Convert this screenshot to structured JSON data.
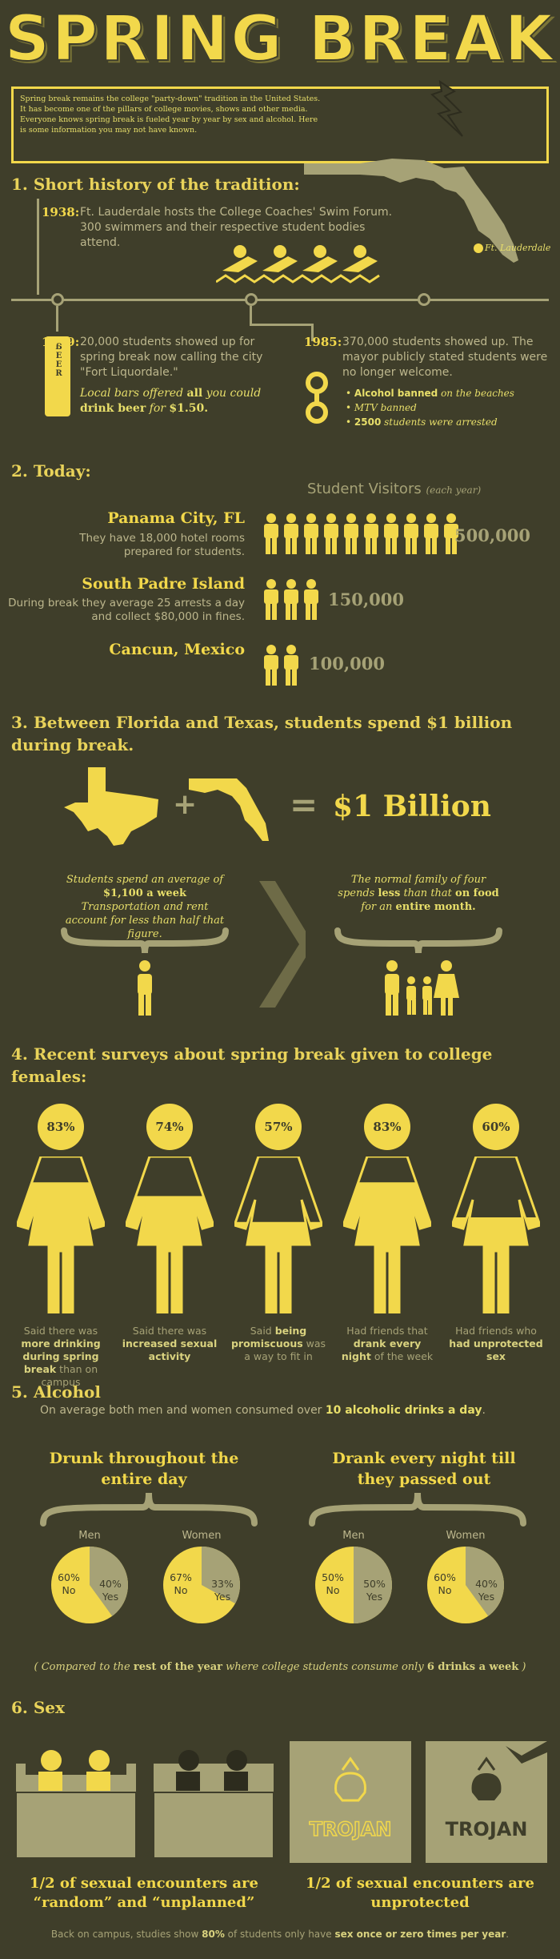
{
  "title": "SPRING BREAK",
  "intro": "Spring break remains the college \"party-down\" tradition in the United States. It has become one of the pillars of college movies, shows and other media. Everyone knows spring break is fueled year by year by sex and alcohol. Here is some information you may not have known.",
  "history": {
    "heading": "1. Short history of the tradition:",
    "map_label": "Ft. Lauderdale",
    "y1938": {
      "year": "1938:",
      "text": "Ft. Lauderdale hosts the College Coaches' Swim Forum. 300 swimmers and their respective student bodies attend."
    },
    "y1959": {
      "year": "1959:",
      "text": "20,000 students showed up for spring break now calling the city \"Fort Liquordale.\"",
      "note_a": "Local bars offered ",
      "note_b": "all",
      "note_c": " you could ",
      "note_d": "drink beer",
      "note_e": " for ",
      "note_f": "$1.50.",
      "beer_label": "BEER"
    },
    "y1985": {
      "year": "1985:",
      "text": "370,000 students showed up. The mayor publicly stated students were no longer welcome.",
      "bullets": [
        {
          "bold": "Alcohol banned",
          "rest": " on the beaches"
        },
        {
          "bold": "",
          "rest": "MTV banned"
        },
        {
          "bold": "2500",
          "rest": " students were arrested"
        }
      ]
    }
  },
  "today": {
    "heading": "2. Today:",
    "visitors_label": "Student Visitors",
    "visitors_sub": "(each year)",
    "places": [
      {
        "name": "Panama City, FL",
        "desc": "They have 18,000 hotel rooms prepared for students.",
        "count": "500,000",
        "icons": 10
      },
      {
        "name": "South Padre Island",
        "desc": "During break they average 25 arrests a day and collect $80,000 in fines.",
        "count": "150,000",
        "icons": 3
      },
      {
        "name": "Cancun, Mexico",
        "desc": "",
        "count": "100,000",
        "icons": 2
      }
    ]
  },
  "billion": {
    "heading": "3. Between Florida and Texas, students spend $1 billion during break.",
    "plus": "+",
    "equals": "=",
    "amount": "$1 Billion",
    "left_a": "Students spend an average of",
    "left_b": "$1,100 a week",
    "left_c": "Transportation and rent account for less than half that figure.",
    "right_a": "The normal family of four spends ",
    "right_b": "less",
    "right_c": " than that ",
    "right_d": "on food",
    "right_e": " for an ",
    "right_f": "entire month."
  },
  "surveys": {
    "heading": "4. Recent surveys about spring break given to college females:",
    "items": [
      {
        "pct": "83%",
        "fill": 0.83,
        "cap_a": "Said there was ",
        "cap_b": "more drinking during spring break",
        "cap_c": " than on campus"
      },
      {
        "pct": "74%",
        "fill": 0.74,
        "cap_a": "Said there was ",
        "cap_b": "increased sexual activity",
        "cap_c": ""
      },
      {
        "pct": "57%",
        "fill": 0.57,
        "cap_a": "Said ",
        "cap_b": "being promiscuous",
        "cap_c": " was a way to fit in"
      },
      {
        "pct": "83%",
        "fill": 0.83,
        "cap_a": "Had friends that ",
        "cap_b": "drank every night",
        "cap_c": " of the week"
      },
      {
        "pct": "60%",
        "fill": 0.6,
        "cap_a": "Had friends who ",
        "cap_b": "had unprotected sex",
        "cap_c": ""
      }
    ]
  },
  "alcohol": {
    "heading": "5. Alcohol",
    "sub_a": "On average both men and women consumed over ",
    "sub_b": "10 alcoholic drinks a day",
    "sub_c": ".",
    "groups": [
      {
        "title": "Drunk throughout the entire day",
        "pies": [
          {
            "who": "Men",
            "no": "60%",
            "yes": "40%",
            "yes_frac": 0.4
          },
          {
            "who": "Women",
            "no": "67%",
            "yes": "33%",
            "yes_frac": 0.33
          }
        ]
      },
      {
        "title": "Drank every night till they passed out",
        "pies": [
          {
            "who": "Men",
            "no": "50%",
            "yes": "50%",
            "yes_frac": 0.5
          },
          {
            "who": "Women",
            "no": "60%",
            "yes": "40%",
            "yes_frac": 0.4
          }
        ]
      }
    ],
    "no_label": "No",
    "yes_label": "Yes",
    "footnote_a": "( Compared to the ",
    "footnote_b": "rest of the year",
    "footnote_c": " where college students consume only ",
    "footnote_d": "6 drinks a week",
    "footnote_e": " )"
  },
  "sex": {
    "heading": "6. Sex",
    "brand": "TROJAN",
    "cap_left": "1/2 of sexual encounters are “random” and “unplanned”",
    "cap_right": "1/2 of sexual encounters are unprotected",
    "bottom_a": "Back on campus, studies show ",
    "bottom_b": "80%",
    "bottom_c": " of students only have ",
    "bottom_d": "sex once or zero times per year",
    "bottom_e": "."
  },
  "colors": {
    "bg": "#3f3e2a",
    "yellow": "#f2d84b",
    "olive": "#a6a276"
  }
}
